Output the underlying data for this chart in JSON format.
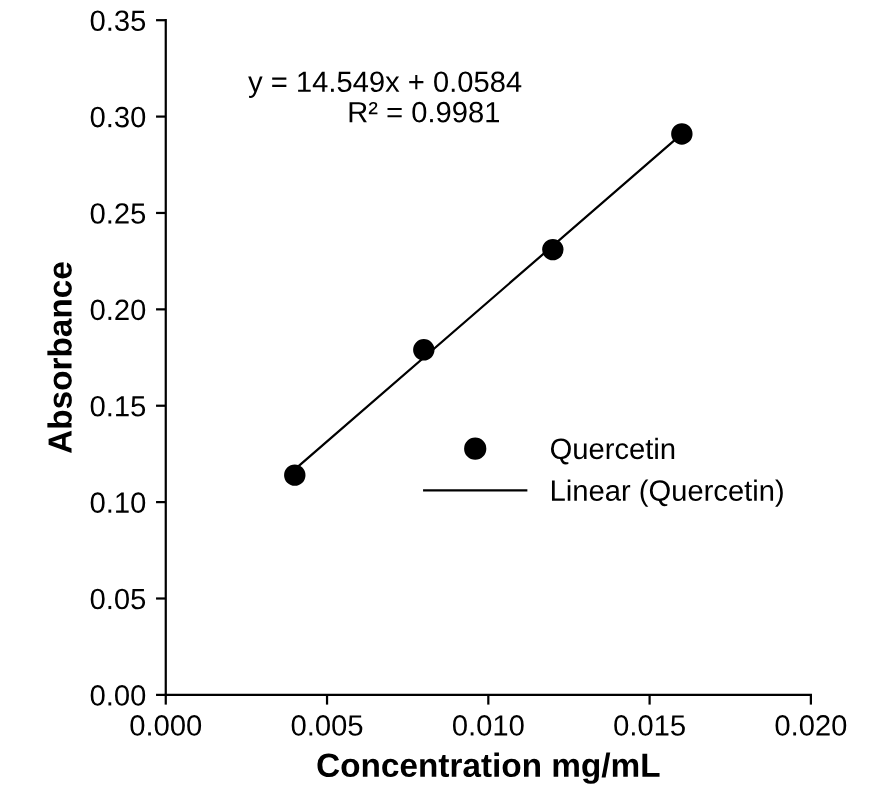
{
  "chart_data": {
    "type": "scatter",
    "xlabel": "Concentration mg/mL",
    "ylabel": "Absorbance",
    "x": [
      0.004,
      0.008,
      0.012,
      0.016
    ],
    "series": [
      {
        "name": "Quercetin",
        "color": "#000000",
        "marker": "circle",
        "values": [
          0.114,
          0.179,
          0.231,
          0.291
        ]
      },
      {
        "name": "Linear (Quercetin)",
        "type": "line",
        "color": "#000000",
        "x": [
          0.004,
          0.016
        ],
        "values": [
          0.117,
          0.291
        ],
        "line_style": "solid",
        "marker": "none"
      }
    ],
    "annotations": [
      "y = 14.549x + 0.0584",
      "R² = 0.9981"
    ],
    "xlim": [
      0,
      0.02
    ],
    "xticks": [
      {
        "value": 0,
        "label": "0.000"
      },
      {
        "value": 0.005,
        "label": "0.005"
      },
      {
        "value": 0.01,
        "label": "0.010"
      },
      {
        "value": 0.015,
        "label": "0.015"
      },
      {
        "value": 0.02,
        "label": "0.020"
      }
    ],
    "ylim": [
      0,
      0.35
    ],
    "yticks": [
      {
        "value": 0,
        "label": "0.00"
      },
      {
        "value": 0.05,
        "label": "0.05"
      },
      {
        "value": 0.1,
        "label": "0.10"
      },
      {
        "value": 0.15,
        "label": "0.15"
      },
      {
        "value": 0.2,
        "label": "0.20"
      },
      {
        "value": 0.25,
        "label": "0.25"
      },
      {
        "value": 0.3,
        "label": "0.30"
      },
      {
        "value": 0.35,
        "label": "0.35"
      }
    ],
    "grid": false,
    "legend": "right"
  }
}
